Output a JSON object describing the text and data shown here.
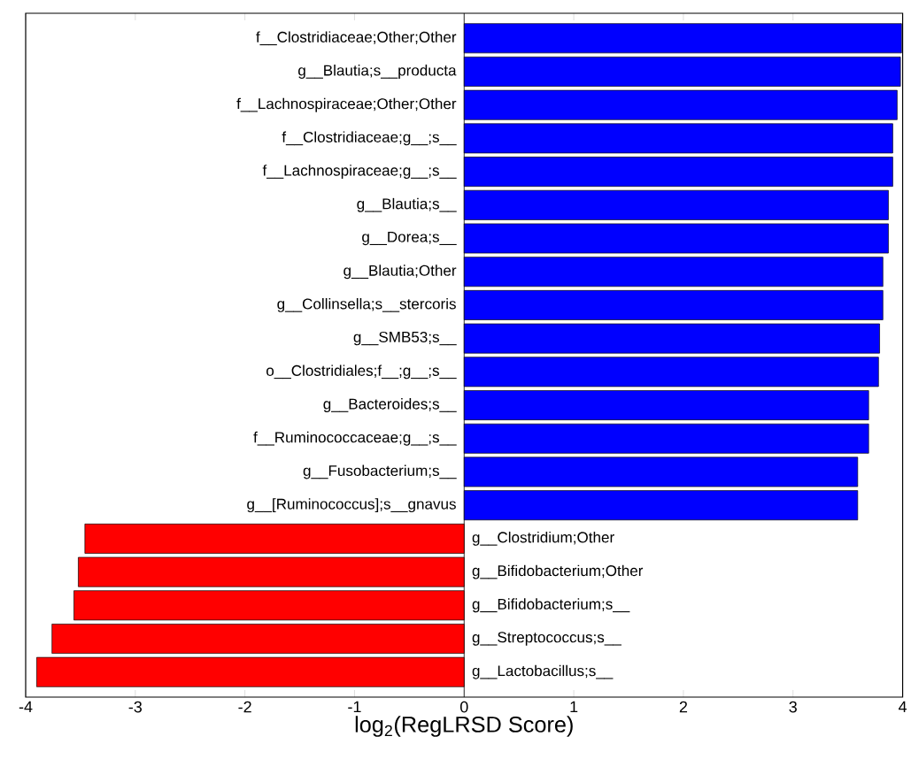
{
  "chart_data": {
    "type": "bar",
    "orientation": "horizontal",
    "xlabel": "log$_{2}$(RegLRSD Score)",
    "categories": [
      "f__Clostridiaceae;Other;Other",
      "g__Blautia;s__producta",
      "f__Lachnospiraceae;Other;Other",
      "f__Clostridiaceae;g__;s__",
      "f__Lachnospiraceae;g__;s__",
      "g__Blautia;s__",
      "g__Dorea;s__",
      "g__Blautia;Other",
      "g__Collinsella;s__stercoris",
      "g__SMB53;s__",
      "o__Clostridiales;f__;g__;s__",
      "g__Bacteroides;s__",
      "f__Ruminococcaceae;g__;s__",
      "g__Fusobacterium;s__",
      "g__[Ruminococcus];s__gnavus",
      "g__Clostridium;Other",
      "g__Bifidobacterium;Other",
      "g__Bifidobacterium;s__",
      "g__Streptococcus;s__",
      "g__Lactobacillus;s__"
    ],
    "values": [
      3.99,
      3.98,
      3.95,
      3.91,
      3.91,
      3.87,
      3.87,
      3.82,
      3.82,
      3.79,
      3.78,
      3.69,
      3.69,
      3.59,
      3.59,
      -3.46,
      -3.52,
      -3.56,
      -3.76,
      -3.9
    ],
    "colors": [
      "#0000ff",
      "#0000ff",
      "#0000ff",
      "#0000ff",
      "#0000ff",
      "#0000ff",
      "#0000ff",
      "#0000ff",
      "#0000ff",
      "#0000ff",
      "#0000ff",
      "#0000ff",
      "#0000ff",
      "#0000ff",
      "#0000ff",
      "#ff0000",
      "#ff0000",
      "#ff0000",
      "#ff0000",
      "#ff0000"
    ],
    "xlim": [
      -4,
      4
    ],
    "xticks": [
      -4,
      -3,
      -2,
      -1,
      0,
      1,
      2,
      3,
      4
    ],
    "grid": false
  }
}
